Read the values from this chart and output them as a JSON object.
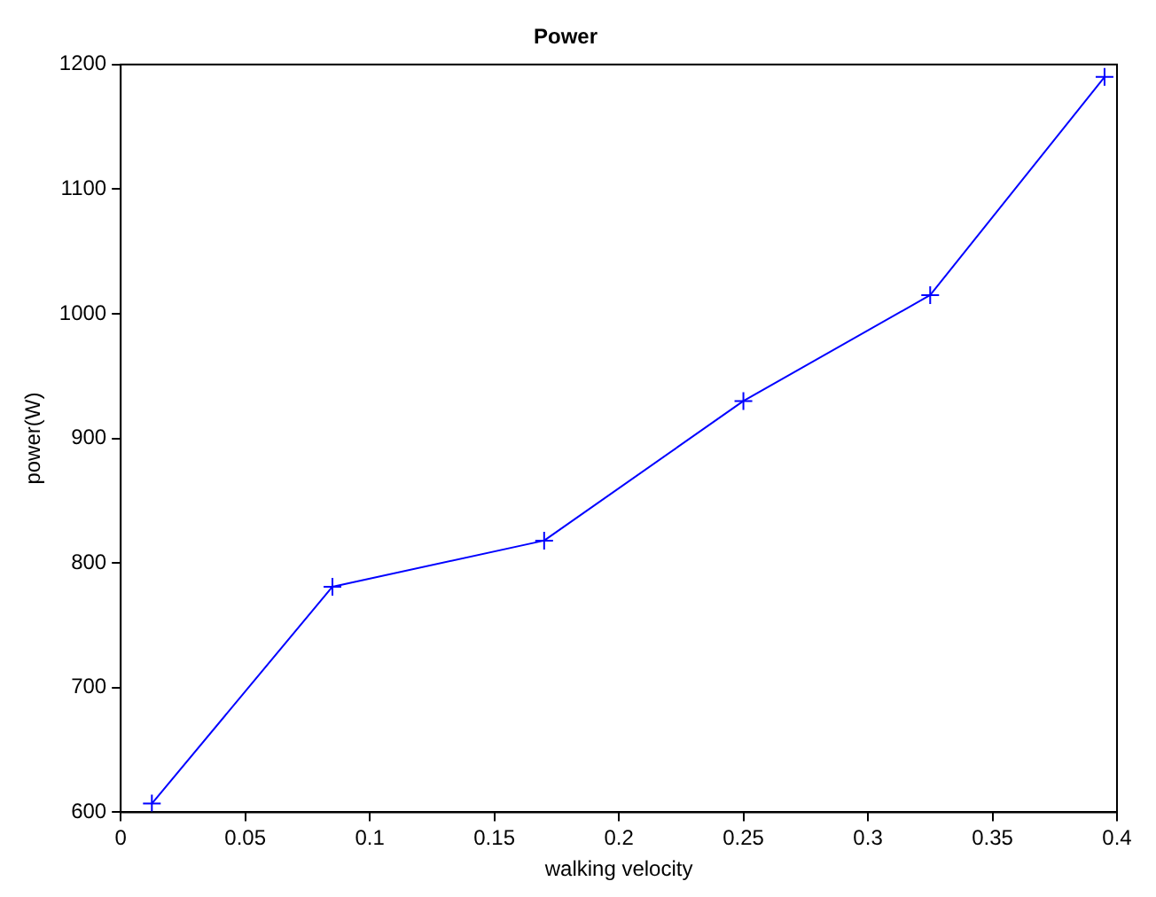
{
  "chart_data": {
    "type": "line",
    "title": "Power",
    "xlabel": "walking velocity",
    "ylabel": "power(W)",
    "x": [
      0.0125,
      0.085,
      0.17,
      0.25,
      0.325,
      0.395
    ],
    "series": [
      {
        "color": "#0000ff",
        "values": [
          607,
          781,
          818,
          930,
          1015,
          1190
        ]
      }
    ],
    "xlim": [
      0,
      0.4
    ],
    "xticks": [
      0,
      0.05,
      0.1,
      0.15,
      0.2,
      0.25,
      0.3,
      0.35,
      0.4
    ],
    "ylim": [
      600,
      1200
    ],
    "yticks": [
      600,
      700,
      800,
      900,
      1000,
      1100,
      1200
    ],
    "marker": "cross",
    "line_style": "solid",
    "grid": false,
    "legend": false
  }
}
